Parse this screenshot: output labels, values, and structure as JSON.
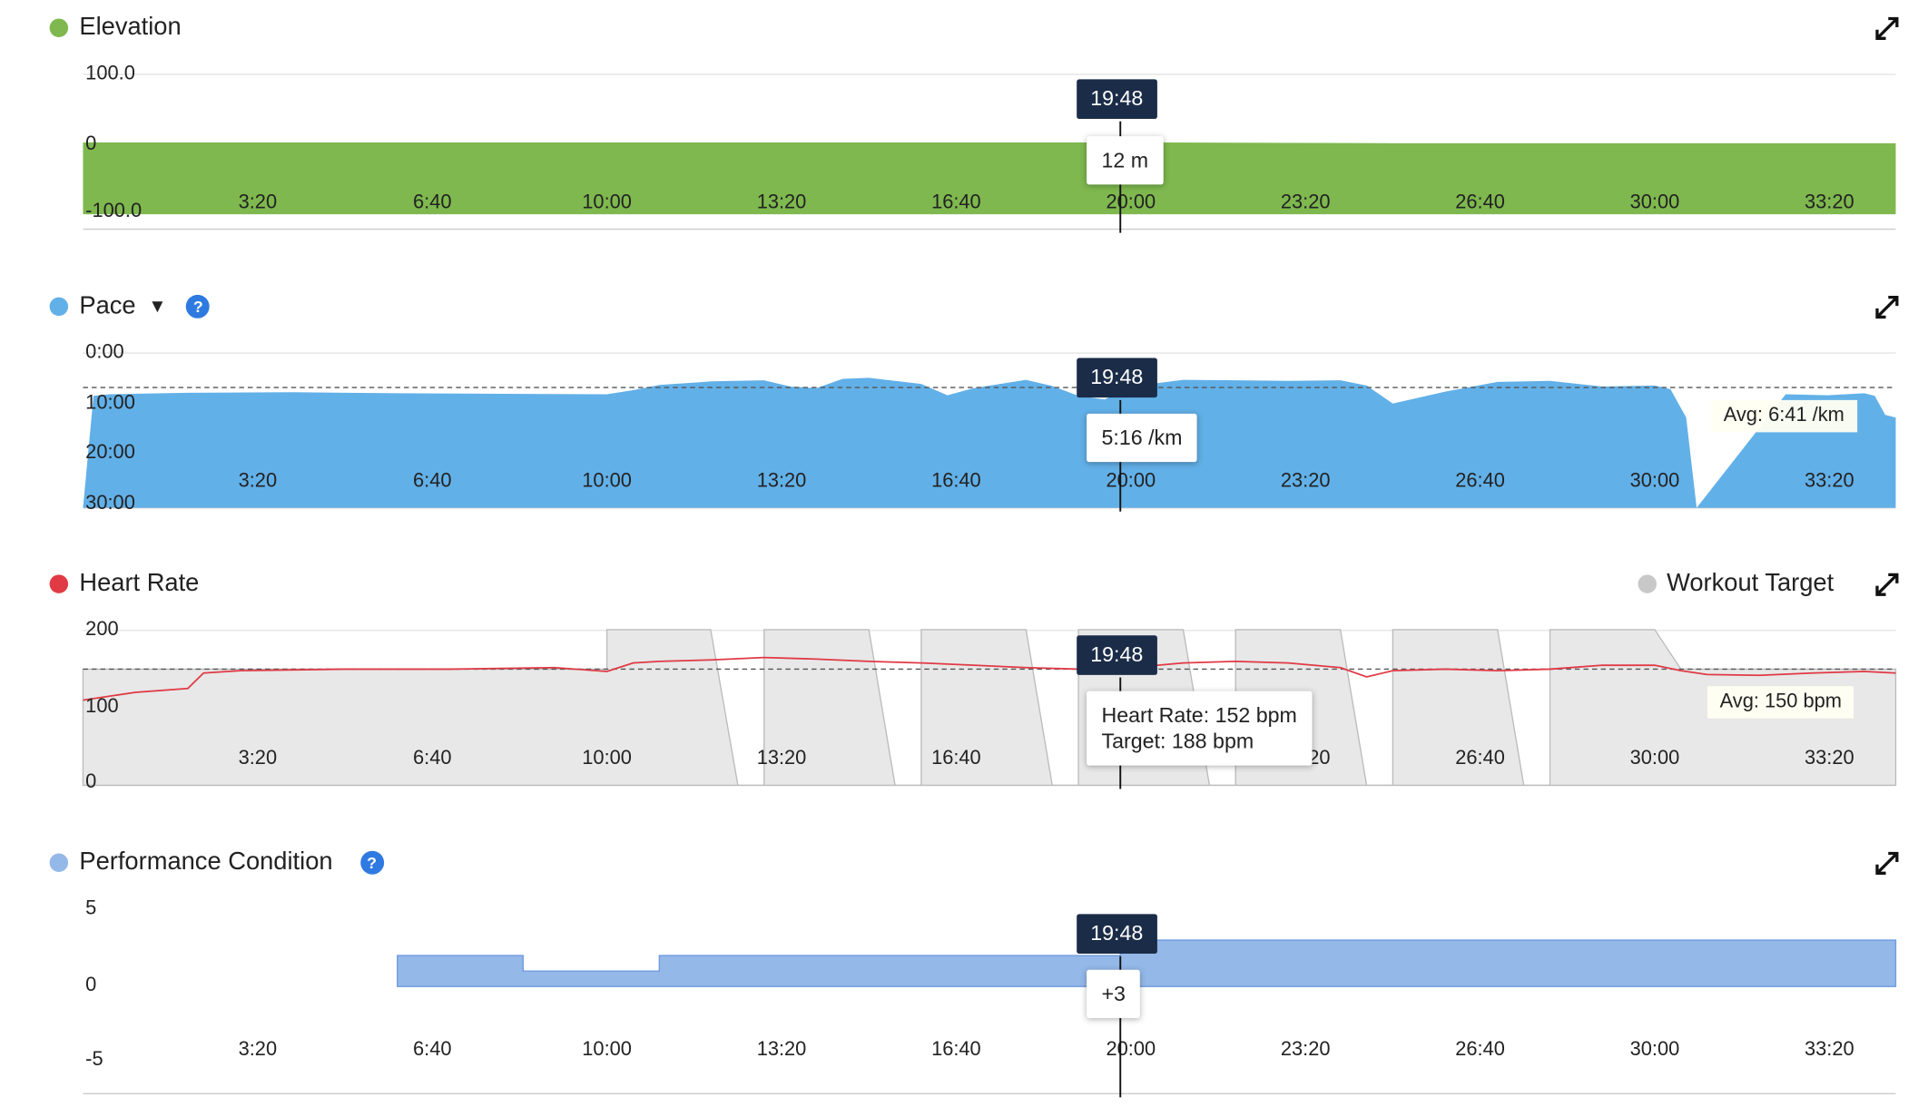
{
  "panels": {
    "elevation": {
      "title": "Elevation",
      "color": "#7eb84e",
      "y_ticks": [
        "100.0",
        "0",
        "-100.0"
      ],
      "tooltip_time": "19:48",
      "tooltip_value": "12 m"
    },
    "pace": {
      "title": "Pace",
      "color": "#62b0e8",
      "y_ticks": [
        "0:00",
        "10:00",
        "20:00",
        "30:00"
      ],
      "tooltip_time": "19:48",
      "tooltip_value": "5:16 /km",
      "avg_label": "Avg: 6:41 /km"
    },
    "heart_rate": {
      "title": "Heart Rate",
      "color": "#e03a45",
      "legend_target": "Workout Target",
      "target_color": "#c8c8c8",
      "y_ticks": [
        "200",
        "100",
        "0"
      ],
      "tooltip_time": "19:48",
      "tooltip_line1": "Heart Rate: 152 bpm",
      "tooltip_line2": "Target: 188 bpm",
      "avg_label": "Avg: 150 bpm"
    },
    "performance": {
      "title": "Performance Condition",
      "color": "#94b8e8",
      "y_ticks": [
        "5",
        "0",
        "-5"
      ],
      "tooltip_time": "19:48",
      "tooltip_value": "+3"
    }
  },
  "chart_data": [
    {
      "type": "area",
      "title": "Elevation",
      "unit": "m",
      "x_tick_labels": [
        "3:20",
        "6:40",
        "10:00",
        "13:20",
        "16:40",
        "20:00",
        "23:20",
        "26:40",
        "30:00",
        "33:20"
      ],
      "x_minutes": [
        0,
        34.6
      ],
      "ylim": [
        -100,
        100
      ],
      "series": [
        {
          "name": "Elevation",
          "x": [
            0,
            5,
            10,
            15,
            20,
            25,
            30,
            34.6
          ],
          "y": [
            12,
            12,
            12,
            12,
            12,
            11,
            11,
            11
          ]
        }
      ],
      "cursor_minute": 19.8,
      "cursor_value": 12
    },
    {
      "type": "area",
      "title": "Pace",
      "unit": "min/km",
      "inverted_y": true,
      "x_tick_labels": [
        "3:20",
        "6:40",
        "10:00",
        "13:20",
        "16:40",
        "20:00",
        "23:20",
        "26:40",
        "30:00",
        "33:20"
      ],
      "x_minutes": [
        0,
        34.6
      ],
      "ylim": [
        0,
        30
      ],
      "average": 6.68,
      "series": [
        {
          "name": "Pace",
          "x": [
            0,
            0.2,
            0.5,
            2,
            4,
            6,
            8,
            10,
            10.5,
            11,
            12,
            13,
            13.5,
            14,
            14.5,
            15,
            16,
            16.5,
            17,
            18,
            18.5,
            19,
            19.5,
            20,
            21,
            22,
            23,
            24,
            24.5,
            25,
            26,
            27,
            28,
            29,
            30,
            30.3,
            30.6,
            30.8,
            32.5,
            33.3,
            34,
            34.2,
            34.4,
            34.6
          ],
          "y": [
            30,
            8.3,
            8,
            7.7,
            7.6,
            7.8,
            7.9,
            8,
            7.2,
            6.2,
            5.5,
            5.3,
            6.5,
            6.8,
            5.0,
            4.8,
            6.0,
            8.2,
            6.8,
            5.2,
            6.4,
            8.3,
            9.0,
            6.5,
            5.2,
            5.3,
            5.4,
            5.3,
            6.3,
            9.8,
            7.5,
            5.6,
            5.4,
            6.5,
            6.3,
            7.0,
            12.5,
            30,
            8.0,
            8.2,
            7.8,
            8.3,
            12.0,
            12.5
          ]
        }
      ],
      "cursor_minute": 19.8,
      "cursor_value": "5:16"
    },
    {
      "type": "line",
      "title": "Heart Rate",
      "unit": "bpm",
      "x_tick_labels": [
        "3:20",
        "6:40",
        "10:00",
        "13:20",
        "16:40",
        "20:00",
        "23:20",
        "26:40",
        "30:00",
        "33:20"
      ],
      "x_minutes": [
        0,
        34.6
      ],
      "ylim": [
        0,
        200
      ],
      "average": 150,
      "series": [
        {
          "name": "Heart Rate",
          "x": [
            0,
            1,
            2,
            2.3,
            3,
            5,
            7,
            9,
            10,
            10.5,
            11,
            12,
            13,
            14,
            15,
            16,
            17,
            18,
            19,
            20,
            21,
            22,
            23,
            24,
            24.5,
            25,
            26,
            27,
            28,
            29,
            30,
            30.5,
            31,
            32,
            33,
            34,
            34.6
          ],
          "y": [
            110,
            120,
            125,
            145,
            148,
            150,
            150,
            152,
            147,
            158,
            160,
            162,
            165,
            163,
            160,
            158,
            155,
            152,
            150,
            152,
            158,
            160,
            158,
            152,
            140,
            148,
            150,
            148,
            150,
            155,
            155,
            148,
            143,
            142,
            145,
            147,
            145
          ]
        },
        {
          "name": "Workout Target",
          "x": [
            0,
            10,
            10,
            11.98,
            12.5,
            13,
            13,
            15,
            15.5,
            16,
            16,
            18,
            18.5,
            19,
            19,
            21,
            21.5,
            22,
            22,
            24,
            24.5,
            25,
            25,
            27,
            27.5,
            28,
            28,
            30,
            30.5,
            34.6
          ],
          "y": [
            150,
            150,
            201,
            201,
            0,
            0,
            201,
            201,
            0,
            0,
            201,
            201,
            0,
            0,
            201,
            201,
            0,
            0,
            201,
            201,
            0,
            0,
            201,
            201,
            0,
            0,
            201,
            201,
            150,
            150
          ]
        }
      ],
      "cursor_minute": 19.8,
      "cursor_value": 152,
      "cursor_target": 188
    },
    {
      "type": "area",
      "title": "Performance Condition",
      "x_tick_labels": [
        "3:20",
        "6:40",
        "10:00",
        "13:20",
        "16:40",
        "20:00",
        "23:20",
        "26:40",
        "30:00",
        "33:20"
      ],
      "x_minutes": [
        0,
        34.6
      ],
      "ylim": [
        -5,
        5
      ],
      "series": [
        {
          "name": "Performance Condition",
          "x": [
            6,
            8.4,
            8.4,
            11,
            11,
            19.8,
            19.8,
            34.6
          ],
          "y": [
            2,
            2,
            1,
            1,
            2,
            2,
            3,
            3
          ]
        }
      ],
      "cursor_minute": 19.8,
      "cursor_value": "+3"
    }
  ]
}
